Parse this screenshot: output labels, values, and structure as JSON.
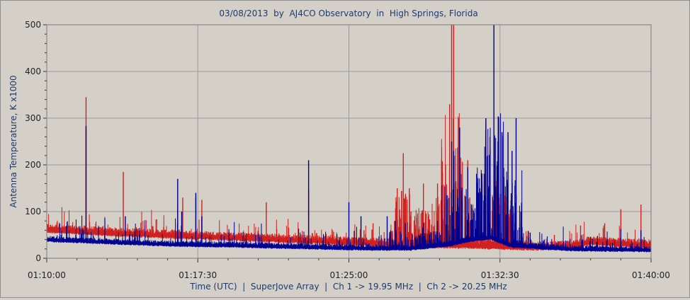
{
  "chart_data": {
    "type": "line",
    "title": "03/08/2013  by  AJ4CO Observatory  in  High Springs, Florida",
    "xlabel": "Time (UTC)  |  SuperJove Array  |  Ch 1 -> 19.95 MHz  |  Ch 2 -> 20.25 MHz",
    "ylabel": "Antenna Temperature, K x1000",
    "x_tick_labels": [
      "01:10:00",
      "01:17:30",
      "01:25:00",
      "01:32:30",
      "01:40:00"
    ],
    "y_tick_labels": [
      "0",
      "100",
      "200",
      "300",
      "400",
      "500"
    ],
    "xlim_minutes_after_0110": [
      0,
      30
    ],
    "ylim": [
      0,
      500
    ],
    "grid": true,
    "colors": {
      "ch1": "#d02020",
      "ch2": "#000090",
      "plot_bg": "#d4d0c8",
      "grid": "#9a9a9a",
      "text": "#1f3a6a"
    },
    "series": [
      {
        "key": "ch1",
        "baseline": [
          [
            0,
            62
          ],
          [
            3,
            55
          ],
          [
            6,
            50
          ],
          [
            9,
            45
          ],
          [
            12,
            40
          ],
          [
            15,
            35
          ],
          [
            18,
            30
          ],
          [
            21,
            28
          ],
          [
            24,
            24
          ],
          [
            26,
            26
          ],
          [
            27,
            36
          ],
          [
            28,
            33
          ],
          [
            30,
            28
          ]
        ],
        "peaks": [
          [
            1.95,
            345
          ],
          [
            3.8,
            185
          ],
          [
            6.5,
            115
          ],
          [
            6.75,
            130
          ],
          [
            7.4,
            130
          ],
          [
            7.7,
            125
          ],
          [
            10.9,
            120
          ],
          [
            13.0,
            145
          ],
          [
            15.75,
            60
          ],
          [
            16.2,
            75
          ],
          [
            17.4,
            150
          ],
          [
            17.7,
            225
          ],
          [
            18.0,
            150
          ],
          [
            18.7,
            160
          ],
          [
            19.4,
            160
          ],
          [
            19.6,
            210
          ],
          [
            19.8,
            200
          ],
          [
            20.0,
            330
          ],
          [
            20.1,
            500
          ],
          [
            20.2,
            500
          ],
          [
            20.5,
            200
          ],
          [
            20.9,
            210
          ],
          [
            21.0,
            130
          ],
          [
            21.5,
            150
          ],
          [
            21.8,
            290
          ],
          [
            22.0,
            260
          ],
          [
            22.2,
            180
          ],
          [
            22.4,
            220
          ],
          [
            22.7,
            160
          ],
          [
            23.2,
            60
          ],
          [
            25.2,
            50
          ],
          [
            26.5,
            70
          ],
          [
            27.7,
            75
          ],
          [
            28.5,
            105
          ],
          [
            29.5,
            115
          ]
        ]
      },
      {
        "key": "ch2",
        "baseline": [
          [
            0,
            40
          ],
          [
            3,
            35
          ],
          [
            6,
            30
          ],
          [
            9,
            28
          ],
          [
            12,
            25
          ],
          [
            15,
            22
          ],
          [
            18,
            21
          ],
          [
            20,
            30
          ],
          [
            21,
            40
          ],
          [
            22,
            45
          ],
          [
            23,
            28
          ],
          [
            26,
            20
          ],
          [
            30,
            18
          ]
        ],
        "peaks": [
          [
            1.95,
            283
          ],
          [
            3.9,
            90
          ],
          [
            6.5,
            170
          ],
          [
            6.7,
            100
          ],
          [
            7.4,
            140
          ],
          [
            7.7,
            90
          ],
          [
            13.0,
            210
          ],
          [
            15.0,
            120
          ],
          [
            15.6,
            90
          ],
          [
            16.9,
            90
          ],
          [
            17.3,
            80
          ],
          [
            17.8,
            75
          ],
          [
            18.7,
            75
          ],
          [
            19.4,
            80
          ],
          [
            20.1,
            250
          ],
          [
            20.2,
            230
          ],
          [
            20.5,
            280
          ],
          [
            20.9,
            195
          ],
          [
            21.4,
            110
          ],
          [
            21.8,
            300
          ],
          [
            21.9,
            150
          ],
          [
            22.2,
            500
          ],
          [
            22.4,
            250
          ],
          [
            22.6,
            270
          ],
          [
            22.9,
            270
          ],
          [
            23.1,
            230
          ],
          [
            23.3,
            300
          ],
          [
            24.0,
            55
          ],
          [
            24.7,
            40
          ],
          [
            26.6,
            40
          ],
          [
            28.5,
            63
          ],
          [
            29.5,
            60
          ]
        ]
      }
    ]
  }
}
